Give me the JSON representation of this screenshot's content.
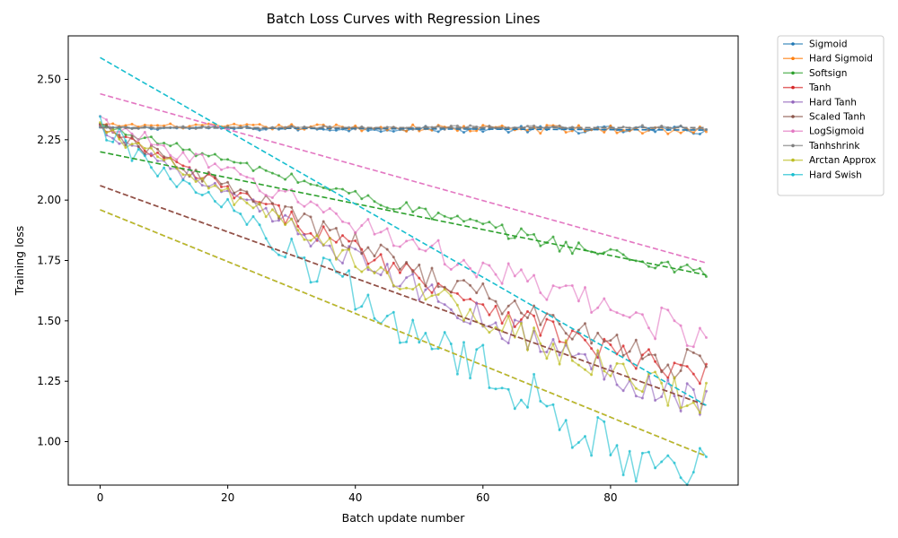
{
  "chart_data": {
    "type": "line",
    "title": "Batch Loss Curves with Regression Lines",
    "xlabel": "Batch update number",
    "ylabel": "Training loss",
    "xlim": [
      -5,
      100
    ],
    "ylim": [
      0.82,
      2.68
    ],
    "xticks": [
      0,
      20,
      40,
      60,
      80
    ],
    "yticks": [
      1.0,
      1.25,
      1.5,
      1.75,
      2.0,
      2.25,
      2.5
    ],
    "ytick_labels": [
      "1.00",
      "1.25",
      "1.50",
      "1.75",
      "2.00",
      "2.25",
      "2.50"
    ],
    "grid": false,
    "legend_position": "outside-right-top",
    "n_points": 96,
    "series": [
      {
        "name": "Sigmoid",
        "color": "#1f77b4",
        "start": 2.3,
        "end": 2.29,
        "noise": 0.012,
        "trend": 0.0,
        "reg": [
          2.3,
          2.29
        ]
      },
      {
        "name": "Hard Sigmoid",
        "color": "#ff7f0e",
        "start": 2.31,
        "end": 2.29,
        "noise": 0.015,
        "trend": 0.0,
        "reg": [
          2.3,
          2.3
        ]
      },
      {
        "name": "Softsign",
        "color": "#2ca02c",
        "start": 2.31,
        "end": 1.71,
        "noise": 0.025,
        "trend": 0.0,
        "reg": [
          2.2,
          1.69
        ]
      },
      {
        "name": "Tanh",
        "color": "#d62728",
        "start": 2.3,
        "end": 1.26,
        "noise": 0.045,
        "trend": 0.0,
        "reg": [
          2.06,
          1.15
        ]
      },
      {
        "name": "Hard Tanh",
        "color": "#9467bd",
        "start": 2.3,
        "end": 1.17,
        "noise": 0.05,
        "trend": 0.0,
        "reg": [
          1.96,
          0.94
        ]
      },
      {
        "name": "Scaled Tanh",
        "color": "#8c564b",
        "start": 2.3,
        "end": 1.3,
        "noise": 0.05,
        "trend": 0.0,
        "reg": [
          2.06,
          1.15
        ]
      },
      {
        "name": "LogSigmoid",
        "color": "#e377c2",
        "start": 2.33,
        "end": 1.45,
        "noise": 0.05,
        "trend": 0.0,
        "reg": [
          2.44,
          1.74
        ]
      },
      {
        "name": "Tanhshrink",
        "color": "#7f7f7f",
        "start": 2.3,
        "end": 2.3,
        "noise": 0.008,
        "trend": 0.0,
        "reg": [
          2.3,
          2.3
        ]
      },
      {
        "name": "Arctan Approx",
        "color": "#bcbd22",
        "start": 2.3,
        "end": 1.17,
        "noise": 0.05,
        "trend": 0.0,
        "reg": [
          1.96,
          0.94
        ]
      },
      {
        "name": "Hard Swish",
        "color": "#17becf",
        "start": 2.3,
        "end": 0.85,
        "noise": 0.1,
        "trend": 0.0,
        "reg": [
          2.59,
          1.15
        ]
      }
    ]
  }
}
